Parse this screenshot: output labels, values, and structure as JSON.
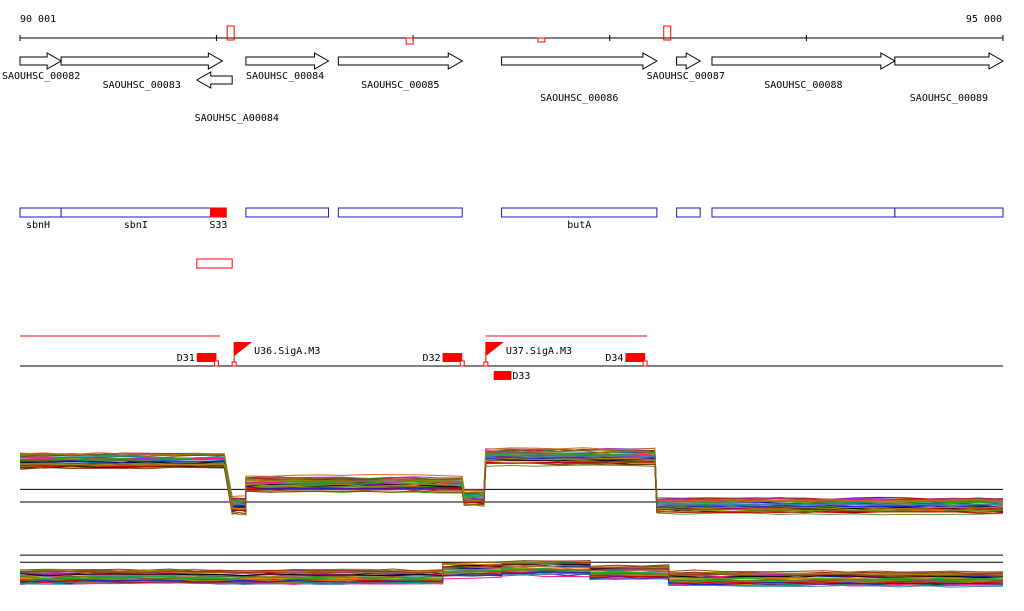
{
  "scale": {
    "start_label": "90 001",
    "end_label": "95 000",
    "start": 90001,
    "end": 95000,
    "ticks": [
      90001,
      91000,
      92000,
      93000,
      94000,
      95000
    ],
    "snps": [
      91070,
      91980,
      92650,
      93290
    ]
  },
  "genes": [
    {
      "id": "SAOUHSC_00082",
      "strand": "+",
      "start": 90001,
      "end": 90210
    },
    {
      "id": "SAOUHSC_00083",
      "strand": "+",
      "start": 90210,
      "end": 91030
    },
    {
      "id": "SAOUHSC_A00084",
      "strand": "-",
      "start": 90900,
      "end": 91080
    },
    {
      "id": "SAOUHSC_00084",
      "strand": "+",
      "start": 91150,
      "end": 91570
    },
    {
      "id": "SAOUHSC_00085",
      "strand": "+",
      "start": 91620,
      "end": 92250
    },
    {
      "id": "SAOUHSC_00086",
      "strand": "+",
      "start": 92450,
      "end": 93240
    },
    {
      "id": "SAOUHSC_00087",
      "strand": "+",
      "start": 93340,
      "end": 93460
    },
    {
      "id": "SAOUHSC_00088",
      "strand": "+",
      "start": 93520,
      "end": 94450
    },
    {
      "id": "SAOUHSC_00089",
      "strand": "+",
      "start": 94450,
      "end": 95000
    }
  ],
  "annotations": [
    {
      "name": "sbnH",
      "start": 90001,
      "end": 90210
    },
    {
      "name": "sbnI",
      "start": 90210,
      "end": 90970
    },
    {
      "name": "S33",
      "start": 90970,
      "end": 91050,
      "filled": true
    },
    {
      "name": "",
      "start": 91150,
      "end": 91570
    },
    {
      "name": "",
      "start": 91620,
      "end": 92250
    },
    {
      "name": "butA",
      "start": 92450,
      "end": 93240
    },
    {
      "name": "",
      "start": 93340,
      "end": 93460
    },
    {
      "name": "",
      "start": 93520,
      "end": 94450
    },
    {
      "name": "",
      "start": 94450,
      "end": 95000
    }
  ],
  "sub_annotation": {
    "start": 90900,
    "end": 91080
  },
  "transcripts": [
    {
      "start": 90001,
      "end": 91020
    },
    {
      "start": 92370,
      "end": 93190
    }
  ],
  "promoters": [
    {
      "name": "U36.SigA.M3",
      "pos": 91090
    },
    {
      "name": "U37.SigA.M3",
      "pos": 92370
    }
  ],
  "terminators": [
    {
      "name": "D31",
      "start": 90900,
      "end": 91000,
      "row": 0
    },
    {
      "name": "D32",
      "start": 92150,
      "end": 92250,
      "row": 0
    },
    {
      "name": "D33",
      "start": 92410,
      "end": 92500,
      "row": 1
    },
    {
      "name": "D34",
      "start": 93080,
      "end": 93180,
      "row": 0
    }
  ],
  "colors": {
    "axis": "#000000",
    "gene": "#000000",
    "annotation": "#1a1ab8",
    "highlight": "#ff0000",
    "series": [
      "#000000",
      "#cc0000",
      "#2222cc",
      "#22aa22",
      "#b8860b",
      "#8b4513",
      "#9932cc",
      "#ff8c00",
      "#808000",
      "#008b8b",
      "#a52a2a",
      "#556b2f",
      "#ff1493",
      "#4682b4",
      "#6b8e23",
      "#d2691e"
    ]
  },
  "expression": [
    {
      "baselines": [
        0.62,
        0.8
      ],
      "segments": [
        {
          "start": 90001,
          "end": 91040,
          "level": 0.22
        },
        {
          "start": 91080,
          "end": 91150,
          "level": 0.85
        },
        {
          "start": 91150,
          "end": 92250,
          "level": 0.55
        },
        {
          "start": 92260,
          "end": 92360,
          "level": 0.75
        },
        {
          "start": 92370,
          "end": 93230,
          "level": 0.16
        },
        {
          "start": 93240,
          "end": 95000,
          "level": 0.86
        }
      ],
      "count": 38
    },
    {
      "baselines": [
        0.05,
        0.22
      ],
      "segments": [
        {
          "start": 90001,
          "end": 92150,
          "level": 0.55
        },
        {
          "start": 92150,
          "end": 92450,
          "level": 0.4
        },
        {
          "start": 92450,
          "end": 92900,
          "level": 0.35
        },
        {
          "start": 92900,
          "end": 93300,
          "level": 0.45
        },
        {
          "start": 93300,
          "end": 95000,
          "level": 0.6
        }
      ],
      "count": 38
    }
  ]
}
